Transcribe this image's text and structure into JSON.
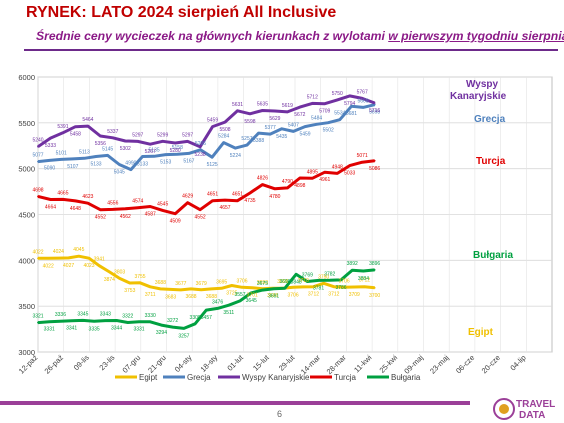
{
  "header": {
    "title": "RYNEK: LATO 2024 sierpień All Inclusive",
    "subtitle_part1": "Średnie ceny wycieczek na głównych kierunkach z wylotami ",
    "subtitle_part2": "w pierwszym tygodniu sierpnia"
  },
  "footer": {
    "page_number": "6",
    "logo_text_1": "TRAVEL",
    "logo_text_2": "DATA"
  },
  "chart_data": {
    "type": "line",
    "ylim": [
      3000,
      6000
    ],
    "yticks": [
      3000,
      3500,
      4000,
      4500,
      5000,
      5500,
      6000
    ],
    "x_tick_labels": [
      "12-paź",
      "26-paź",
      "09-lis",
      "23-lis",
      "07-gru",
      "21-gru",
      "04-sty",
      "18-sty",
      "01-lut",
      "15-lut",
      "29-lut",
      "14-mar",
      "28-mar",
      "11-kwi",
      "25-kwi",
      "09-maj",
      "23-maj",
      "06-cze",
      "20-cze",
      "04-lip"
    ],
    "grid": true,
    "legend_position": "bottom",
    "series": [
      {
        "name": "Egipt",
        "color": "#f0c000",
        "right_label": "Egipt",
        "values": [
          4022,
          4022,
          4024,
          4027,
          4045,
          4023,
          3941,
          3874,
          3803,
          3753,
          3755,
          3711,
          3688,
          3683,
          3677,
          3688,
          3679,
          3688,
          3695,
          3725,
          3706,
          3701,
          3690,
          3696,
          3696,
          3706,
          3710,
          3712,
          3750,
          3712,
          3706,
          3709,
          3712,
          3700
        ],
        "labels": [
          "4022",
          "4022",
          "4024",
          "4027",
          "4045",
          "4023",
          "3941",
          "3874",
          "3803",
          "3753",
          "3755",
          "3711",
          "3688",
          "3683",
          "3677",
          "3688",
          "3679",
          "3688",
          "3695",
          "3725",
          "3706",
          "3701",
          "3690",
          "3696",
          "3696",
          "3706",
          "3710",
          "3712",
          "3750",
          "3712",
          "3706",
          "3709",
          "3712",
          "3700"
        ]
      },
      {
        "name": "Grecja",
        "color": "#4f81bd",
        "right_label": "Grecja",
        "values": [
          5077,
          5090,
          5101,
          5107,
          5113,
          5133,
          5145,
          5045,
          4990,
          5133,
          5135,
          5153,
          5158,
          5167,
          5206,
          5125,
          5284,
          5224,
          5257,
          5388,
          5377,
          5435,
          5407,
          5459,
          5484,
          5502,
          5534,
          5681,
          5668,
          5698
        ],
        "labels": [
          "5077",
          "5090",
          "5101",
          "5107",
          "5113",
          "5133",
          "5145",
          "5045",
          "4990",
          "5133",
          "5135",
          "5153",
          "5158",
          "5167",
          "5206",
          "5125",
          "5284",
          "5224",
          "5257",
          "5388",
          "5377",
          "5435",
          "5407",
          "5459",
          "5484",
          "5502",
          "5534",
          "5681",
          "5668",
          "5698"
        ]
      },
      {
        "name": "Wyspy Kanaryjskie",
        "color": "#7030a0",
        "right_label": "Wyspy Kanaryjskie",
        "values": [
          5240,
          5333,
          5391,
          5458,
          5464,
          5356,
          5337,
          5302,
          5297,
          5267,
          5299,
          5280,
          5297,
          5238,
          5459,
          5508,
          5631,
          5598,
          5635,
          5629,
          5619,
          5672,
          5712,
          5709,
          5750,
          5794,
          5767,
          5716
        ],
        "labels": [
          "5240",
          "5333",
          "5391",
          "5458",
          "5464",
          "5356",
          "5337",
          "5302",
          "5297",
          "5267",
          "5299",
          "5280",
          "5297",
          "5238",
          "5459",
          "5508",
          "5631",
          "5598",
          "5635",
          "5629",
          "5619",
          "5672",
          "5712",
          "5709",
          "5750",
          "5794",
          "5767",
          "5716"
        ]
      },
      {
        "name": "Turcja",
        "color": "#e00000",
        "right_label": "Turcja",
        "values": [
          4698,
          4664,
          4665,
          4648,
          4623,
          4552,
          4556,
          4562,
          4574,
          4587,
          4545,
          4509,
          4629,
          4552,
          4651,
          4657,
          4651,
          4735,
          4826,
          4780,
          4790,
          4898,
          4895,
          4961,
          4948,
          5033,
          5071,
          5086
        ],
        "labels": [
          "4698",
          "4664",
          "4665",
          "4648",
          "4623",
          "4552",
          "4556",
          "4562",
          "4574",
          "4587",
          "4545",
          "4509",
          "4629",
          "4552",
          "4651",
          "4657",
          "4651",
          "4735",
          "4826",
          "4780",
          "4790",
          "4898",
          "4895",
          "4961",
          "4948",
          "5033",
          "5071",
          "5086"
        ]
      },
      {
        "name": "Bułgaria",
        "color": "#00a040",
        "right_label": "Bułgaria",
        "values": [
          3321,
          3331,
          3336,
          3341,
          3345,
          3335,
          3343,
          3344,
          3322,
          3331,
          3330,
          3294,
          3272,
          3257,
          3308,
          3457,
          3476,
          3511,
          3557,
          3645,
          3675,
          3691,
          3696,
          3848,
          3769,
          3781,
          3782,
          3786,
          3892,
          3884,
          3896
        ],
        "labels": [
          "3321",
          "3331",
          "3336",
          "3341",
          "3345",
          "3335",
          "3343",
          "3344",
          "3322",
          "3331",
          "3330",
          "3294",
          "3272",
          "3257",
          "3308",
          "3457",
          "3476",
          "3511",
          "3557",
          "3645",
          "3675",
          "3691",
          "3696",
          "3848",
          "3769",
          "3781",
          "3782",
          "3786",
          "3892",
          "3884",
          "3896"
        ]
      }
    ]
  }
}
